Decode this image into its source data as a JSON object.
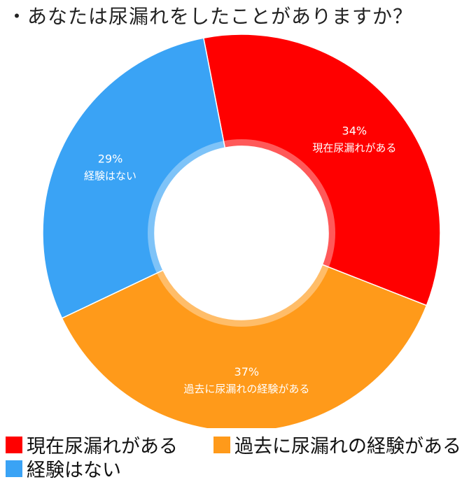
{
  "title": "・あなたは尿漏れをしたことがありますか？",
  "chart_data": {
    "type": "pie",
    "variant": "donut",
    "title": "・あなたは尿漏れをしたことがありますか？",
    "slices": [
      {
        "label": "現在尿漏れがある",
        "value": 34,
        "value_label": "34%",
        "color": "#ff0000"
      },
      {
        "label": "過去に尿漏れの経験がある",
        "value": 37,
        "value_label": "37%",
        "color": "#ff9a1a"
      },
      {
        "label": "経験はない",
        "value": 29,
        "value_label": "29%",
        "color": "#3aa3f5"
      }
    ],
    "legend_position": "bottom"
  }
}
